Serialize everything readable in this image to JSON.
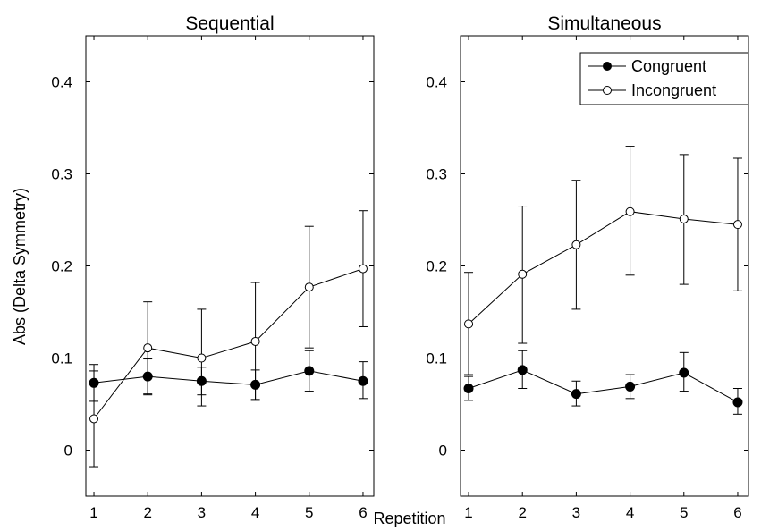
{
  "figure": {
    "ylabel": "Abs (Delta Symmetry)",
    "xlabel": "Repetition"
  },
  "legend": {
    "placement": "top-right",
    "entries": [
      {
        "label": "Congruent",
        "marker": "filled-circle"
      },
      {
        "label": "Incongruent",
        "marker": "open-circle"
      }
    ]
  },
  "chart_data": [
    {
      "type": "line",
      "title": "Sequential",
      "x": [
        1,
        2,
        3,
        4,
        5,
        6
      ],
      "xlim": [
        0.85,
        6.2
      ],
      "ylim": [
        -0.05,
        0.45
      ],
      "x_ticks": [
        "1",
        "2",
        "3",
        "4",
        "5",
        "6"
      ],
      "y_ticks": [
        "0",
        "0.1",
        "0.2",
        "0.3",
        "0.4"
      ],
      "grid": false,
      "series": [
        {
          "name": "Congruent",
          "marker": "filled",
          "values": [
            0.073,
            0.08,
            0.075,
            0.071,
            0.086,
            0.075
          ],
          "err_low": [
            0.053,
            0.061,
            0.06,
            0.055,
            0.064,
            0.056
          ],
          "err_high": [
            0.093,
            0.099,
            0.09,
            0.087,
            0.108,
            0.096
          ]
        },
        {
          "name": "Incongruent",
          "marker": "open",
          "values": [
            0.034,
            0.111,
            0.1,
            0.118,
            0.177,
            0.197
          ],
          "err_low": [
            -0.018,
            0.06,
            0.048,
            0.054,
            0.111,
            0.134
          ],
          "err_high": [
            0.086,
            0.161,
            0.153,
            0.182,
            0.243,
            0.26
          ]
        }
      ]
    },
    {
      "type": "line",
      "title": "Simultaneous",
      "x": [
        1,
        2,
        3,
        4,
        5,
        6
      ],
      "xlim": [
        0.85,
        6.2
      ],
      "ylim": [
        -0.05,
        0.45
      ],
      "x_ticks": [
        "1",
        "2",
        "3",
        "4",
        "5",
        "6"
      ],
      "y_ticks": [
        "0",
        "0.1",
        "0.2",
        "0.3",
        "0.4"
      ],
      "grid": false,
      "series": [
        {
          "name": "Congruent",
          "marker": "filled",
          "values": [
            0.067,
            0.087,
            0.061,
            0.069,
            0.084,
            0.052
          ],
          "err_low": [
            0.054,
            0.067,
            0.048,
            0.056,
            0.064,
            0.039
          ],
          "err_high": [
            0.08,
            0.108,
            0.075,
            0.082,
            0.106,
            0.067
          ]
        },
        {
          "name": "Incongruent",
          "marker": "open",
          "values": [
            0.137,
            0.191,
            0.223,
            0.259,
            0.251,
            0.245
          ],
          "err_low": [
            0.082,
            0.116,
            0.153,
            0.19,
            0.18,
            0.173
          ],
          "err_high": [
            0.193,
            0.265,
            0.293,
            0.33,
            0.321,
            0.317
          ]
        }
      ]
    }
  ]
}
